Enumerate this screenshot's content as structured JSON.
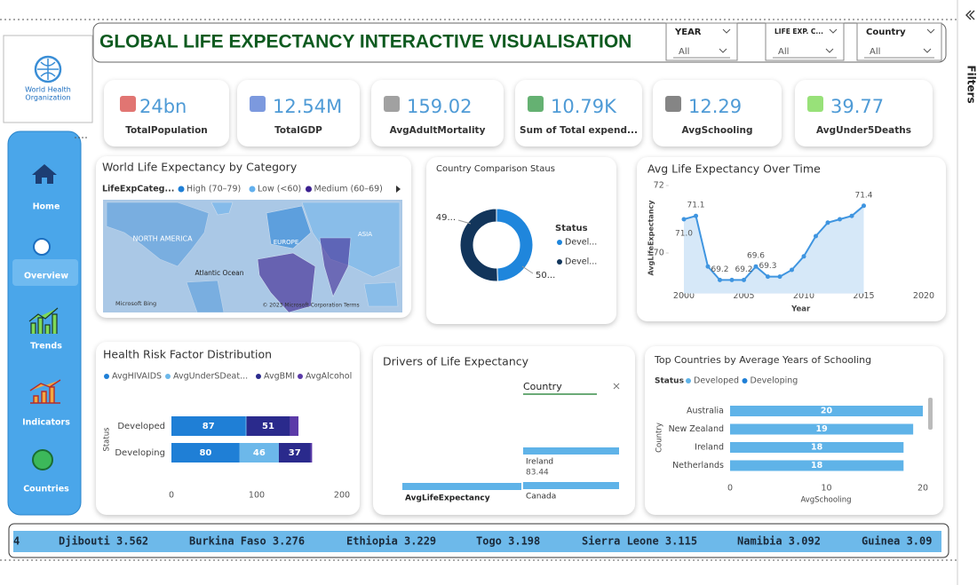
{
  "header": {
    "title": "GLOBAL LIFE EXPECTANCY INTERACTIVE VISUALISATION"
  },
  "logo_text": [
    "World Health",
    "Organization"
  ],
  "slicers": [
    {
      "label": "YEAR",
      "value": "All"
    },
    {
      "label": "LIFE EXP. C...",
      "value": "All"
    },
    {
      "label": "Country",
      "value": "All"
    }
  ],
  "nav": [
    "Home",
    "Overview",
    "Trends",
    "Indicators",
    "Countries"
  ],
  "filters": "Filters",
  "kpis": [
    {
      "value": "24bn",
      "label": "TotalPopulation"
    },
    {
      "value": "12.54M",
      "label": "TotalGDP"
    },
    {
      "value": "159.02",
      "label": "AvgAdultMortality"
    },
    {
      "value": "10.79K",
      "label": "Sum of Total expend..."
    },
    {
      "value": "12.29",
      "label": "AvgSchooling"
    },
    {
      "value": "39.77",
      "label": "AvgUnder5Deaths"
    }
  ],
  "chart_data": [
    {
      "type": "map",
      "title": "World Life Expectancy by Category",
      "legend_title": "LifeExpCateg...",
      "series": [
        {
          "name": "High (70–79)",
          "color": "#1f7fd6"
        },
        {
          "name": "Low (<60)",
          "color": "#62b0ee"
        },
        {
          "name": "Medium (60–69)",
          "color": "#3b1f8f"
        }
      ],
      "labels": [
        "NORTH AMERICA",
        "EUROPE",
        "ASIA",
        "Atlantic Ocean",
        "Microsoft Bing",
        "© 2023 Microsoft Corporation  Terms"
      ]
    },
    {
      "type": "donut",
      "title": "Country Comparison Staus",
      "legend_title": "Status",
      "categories": [
        "Devel...",
        "Devel..."
      ],
      "values": [
        49,
        50
      ],
      "value_labels": [
        "49...",
        "50..."
      ],
      "colors": [
        "#1f86dc",
        "#12355b"
      ]
    },
    {
      "type": "line",
      "title": "Avg Life Expectancy Over Time",
      "x_label": "Year",
      "y_label": "AvgLifeExpectancy",
      "x": [
        2000,
        2001,
        2002,
        2003,
        2004,
        2005,
        2006,
        2007,
        2008,
        2009,
        2010,
        2011,
        2012,
        2013,
        2014,
        2015
      ],
      "values": [
        71.0,
        71.1,
        69.6,
        69.2,
        69.2,
        69.2,
        69.6,
        69.3,
        69.3,
        69.5,
        69.9,
        70.5,
        70.9,
        71.0,
        71.1,
        71.4
      ],
      "value_labels": [
        "71.0",
        "71.1",
        null,
        "69.2",
        null,
        "69.2",
        "69.6",
        "69.3",
        null,
        null,
        null,
        null,
        null,
        null,
        null,
        "71.4"
      ],
      "color": "#3f95e0",
      "xlim": [
        1998.5,
        2021
      ],
      "xticks": [
        2000,
        2005,
        2010,
        2015,
        2020
      ],
      "ylim": [
        68.8,
        72
      ],
      "yticks": [
        70,
        72
      ]
    },
    {
      "type": "bar",
      "orientation": "horizontal",
      "stacked": true,
      "title": "Health Risk Factor Distribution",
      "y_label": "Status",
      "categories": [
        "Developed",
        "Developing"
      ],
      "series": [
        {
          "name": "AvgHIVAIDS",
          "color": "#1f7fd6",
          "values": [
            87,
            80
          ]
        },
        {
          "name": "AvgUnderSDeat...",
          "color": "#6cb8ea",
          "values": [
            1,
            46
          ]
        },
        {
          "name": "AvgBMI",
          "color": "#2a2a8c",
          "values": [
            51,
            37
          ]
        },
        {
          "name": "AvgAlcohol",
          "color": "#5b3aa8",
          "values": [
            10,
            2
          ]
        }
      ],
      "xlim": [
        0,
        200
      ],
      "xticks": [
        0,
        100,
        200
      ]
    },
    {
      "type": "bar",
      "orientation": "horizontal",
      "title": "Top Countries by Average Years of Schooling",
      "legend_title": "Status",
      "x_label": "AvgSchooling",
      "y_label": "Country",
      "categories": [
        "Australia",
        "New Zealand",
        "Ireland",
        "Netherlands"
      ],
      "series": [
        {
          "name": "Developed",
          "color": "#5fb3e8",
          "values": [
            20,
            19,
            18,
            18
          ]
        },
        {
          "name": "Developing",
          "color": "#1f7fd6",
          "values": [
            null,
            null,
            null,
            null
          ]
        }
      ],
      "xlim": [
        0,
        20
      ],
      "xticks": [
        0,
        10,
        20
      ]
    }
  ],
  "drivers": {
    "title": "Drivers of Life Expectancy",
    "root_label": "AvgLifeExpectancy",
    "level_label": "Country",
    "nodes": [
      {
        "label": "Ireland",
        "value": "83.44"
      },
      {
        "label": "Canada"
      }
    ]
  },
  "ticker": [
    "4",
    "Djibouti 3.562",
    "Burkina Faso 3.276",
    "Ethiopia 3.229",
    "Togo 3.198",
    "Sierra Leone 3.115",
    "Namibia 3.092",
    "Guinea 3.09"
  ]
}
